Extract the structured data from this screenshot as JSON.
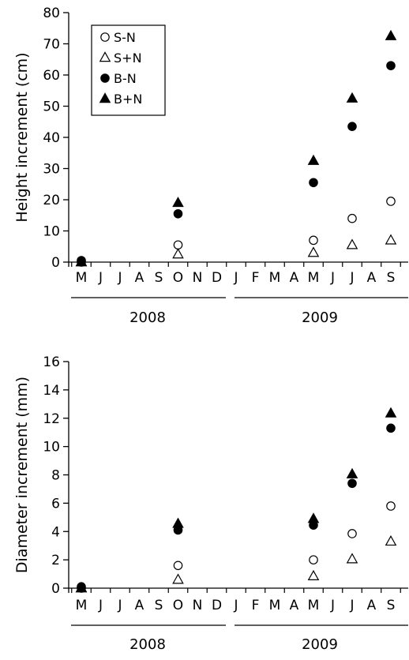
{
  "chart_data": [
    {
      "type": "scatter",
      "ylabel": "Height increment (cm)",
      "ylim": [
        0,
        80
      ],
      "yticks": [
        "0",
        "10",
        "20",
        "30",
        "40",
        "50",
        "60",
        "70",
        "80"
      ],
      "months": [
        "M",
        "J",
        "J",
        "A",
        "S",
        "O",
        "N",
        "D",
        "J",
        "F",
        "M",
        "A",
        "M",
        "J",
        "J",
        "A",
        "S"
      ],
      "years": [
        "2008",
        "2009"
      ],
      "legend": {
        "position": "top-left",
        "entries": [
          {
            "name": "S-N",
            "marker": "circle-open"
          },
          {
            "name": "S+N",
            "marker": "triangle-open"
          },
          {
            "name": "B-N",
            "marker": "circle-filled"
          },
          {
            "name": "B+N",
            "marker": "triangle-filled"
          }
        ]
      },
      "grid": false,
      "series": [
        {
          "name": "S-N",
          "marker": "circle-open",
          "points": [
            {
              "x": "May 2008",
              "y": 0
            },
            {
              "x": "Oct 2008",
              "y": 5.5
            },
            {
              "x": "May 2009",
              "y": 7
            },
            {
              "x": "Jul 2009",
              "y": 14
            },
            {
              "x": "Sep 2009",
              "y": 19.5
            }
          ]
        },
        {
          "name": "S+N",
          "marker": "triangle-open",
          "points": [
            {
              "x": "May 2008",
              "y": 0
            },
            {
              "x": "Oct 2008",
              "y": 2.5
            },
            {
              "x": "May 2009",
              "y": 3
            },
            {
              "x": "Jul 2009",
              "y": 5.5
            },
            {
              "x": "Sep 2009",
              "y": 7
            }
          ]
        },
        {
          "name": "B-N",
          "marker": "circle-filled",
          "points": [
            {
              "x": "May 2008",
              "y": 0.5
            },
            {
              "x": "Oct 2008",
              "y": 15.5
            },
            {
              "x": "May 2009",
              "y": 25.5
            },
            {
              "x": "Jul 2009",
              "y": 43.5
            },
            {
              "x": "Sep 2009",
              "y": 63
            }
          ]
        },
        {
          "name": "B+N",
          "marker": "triangle-filled",
          "points": [
            {
              "x": "May 2008",
              "y": 0
            },
            {
              "x": "Oct 2008",
              "y": 19
            },
            {
              "x": "May 2009",
              "y": 32.5
            },
            {
              "x": "Jul 2009",
              "y": 52.5
            },
            {
              "x": "Sep 2009",
              "y": 72.5
            }
          ]
        }
      ]
    },
    {
      "type": "scatter",
      "ylabel": "Diameter increment (mm)",
      "ylim": [
        0,
        16
      ],
      "yticks": [
        "0",
        "2",
        "4",
        "6",
        "8",
        "10",
        "12",
        "14",
        "16"
      ],
      "months": [
        "M",
        "J",
        "J",
        "A",
        "S",
        "O",
        "N",
        "D",
        "J",
        "F",
        "M",
        "A",
        "M",
        "J",
        "J",
        "A",
        "S"
      ],
      "years": [
        "2008",
        "2009"
      ],
      "grid": false,
      "series": [
        {
          "name": "S-N",
          "marker": "circle-open",
          "points": [
            {
              "x": "May 2008",
              "y": 0
            },
            {
              "x": "Oct 2008",
              "y": 1.6
            },
            {
              "x": "May 2009",
              "y": 2
            },
            {
              "x": "Jul 2009",
              "y": 3.85
            },
            {
              "x": "Sep 2009",
              "y": 5.8
            }
          ]
        },
        {
          "name": "S+N",
          "marker": "triangle-open",
          "points": [
            {
              "x": "May 2008",
              "y": 0
            },
            {
              "x": "Oct 2008",
              "y": 0.6
            },
            {
              "x": "May 2009",
              "y": 0.85
            },
            {
              "x": "Jul 2009",
              "y": 2.05
            },
            {
              "x": "Sep 2009",
              "y": 3.3
            }
          ]
        },
        {
          "name": "B-N",
          "marker": "circle-filled",
          "points": [
            {
              "x": "May 2008",
              "y": 0.1
            },
            {
              "x": "Oct 2008",
              "y": 4.1
            },
            {
              "x": "May 2009",
              "y": 4.45
            },
            {
              "x": "Jul 2009",
              "y": 7.4
            },
            {
              "x": "Sep 2009",
              "y": 11.3
            }
          ]
        },
        {
          "name": "B+N",
          "marker": "triangle-filled",
          "points": [
            {
              "x": "May 2008",
              "y": 0
            },
            {
              "x": "Oct 2008",
              "y": 4.55
            },
            {
              "x": "May 2009",
              "y": 4.9
            },
            {
              "x": "Jul 2009",
              "y": 8.05
            },
            {
              "x": "Sep 2009",
              "y": 12.35
            }
          ]
        }
      ]
    }
  ]
}
